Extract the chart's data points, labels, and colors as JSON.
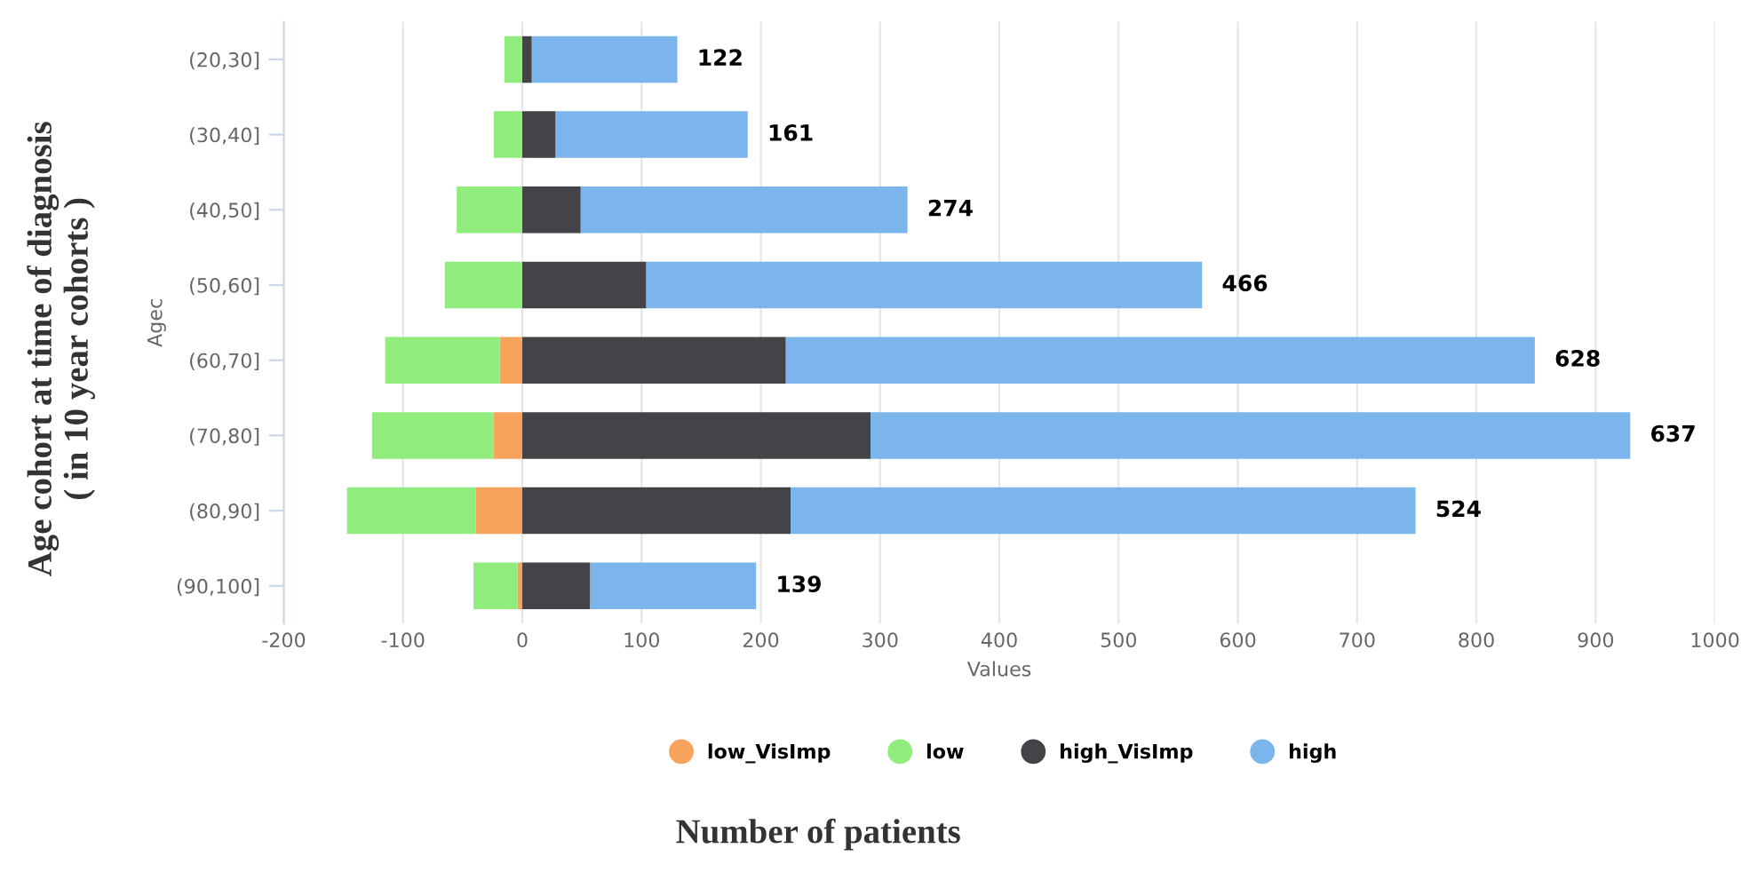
{
  "chart_data": {
    "type": "bar",
    "orientation": "horizontal",
    "stacked": true,
    "categories": [
      "(20,30]",
      "(30,40]",
      "(40,50]",
      "(50,60]",
      "(60,70]",
      "(70,80]",
      "(80,90]",
      "(90,100]"
    ],
    "series": [
      {
        "name": "low_VisImp",
        "color": "#f7a35c",
        "values": [
          0,
          0,
          0,
          0,
          -19,
          -24,
          -39,
          -4
        ]
      },
      {
        "name": "low",
        "color": "#90ed7d",
        "values": [
          -15,
          -24,
          -55,
          -65,
          -96,
          -102,
          -108,
          -37
        ]
      },
      {
        "name": "high_VisImp",
        "color": "#434348",
        "values": [
          8,
          28,
          49,
          104,
          221,
          292,
          225,
          57
        ]
      },
      {
        "name": "high",
        "color": "#7cb5ec",
        "values": [
          122,
          161,
          274,
          466,
          628,
          637,
          524,
          139
        ],
        "value_labels": [
          "122",
          "161",
          "274",
          "466",
          "628",
          "637",
          "524",
          "139"
        ]
      }
    ],
    "xlim": [
      -200,
      1000
    ],
    "xticks": [
      -200,
      -100,
      0,
      100,
      200,
      300,
      400,
      500,
      600,
      700,
      800,
      900,
      1000
    ],
    "xlabel": "Values",
    "ylabel": "Agec",
    "grid": "x",
    "legend": "bottom",
    "marker": "circle",
    "annotations": [
      "Age cohort at time of diagnosis\n( in 10 year cohorts )",
      "Number of patients"
    ]
  }
}
